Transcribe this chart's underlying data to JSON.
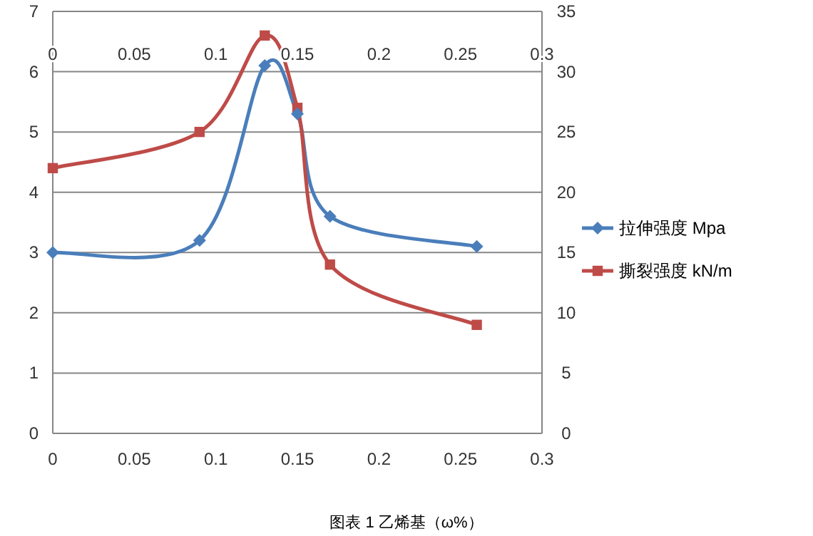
{
  "chart_data": {
    "type": "line",
    "legend": "right",
    "grid": "y",
    "xlim": [
      0,
      0.3
    ],
    "xticks": [
      0,
      0.05,
      0.1,
      0.15,
      0.2,
      0.25,
      0.3
    ],
    "x2lim": [
      0,
      0.3
    ],
    "x2ticks": [
      0,
      0.05,
      0.1,
      0.15,
      0.2,
      0.25,
      0.3
    ],
    "ylim": [
      0,
      7
    ],
    "yticks": [
      0,
      1,
      2,
      3,
      4,
      5,
      6,
      7
    ],
    "y2lim": [
      0,
      35
    ],
    "y2ticks": [
      0,
      5,
      10,
      15,
      20,
      25,
      30,
      35
    ],
    "x": [
      0,
      0.09,
      0.13,
      0.15,
      0.17,
      0.26
    ],
    "series": [
      {
        "name": "拉伸强度 Mpa",
        "color": "#4a7ebb",
        "marker": "diamond",
        "values": [
          3,
          3.2,
          6.1,
          5.3,
          3.6,
          3.1
        ]
      },
      {
        "name": "撕裂强度 kN/m",
        "color": "#be4b48",
        "marker": "square",
        "axis": "y2",
        "values": [
          22,
          25,
          33,
          27,
          14,
          9
        ]
      }
    ],
    "annotations": [
      "图表 1 乙烯基（ω%）"
    ]
  }
}
